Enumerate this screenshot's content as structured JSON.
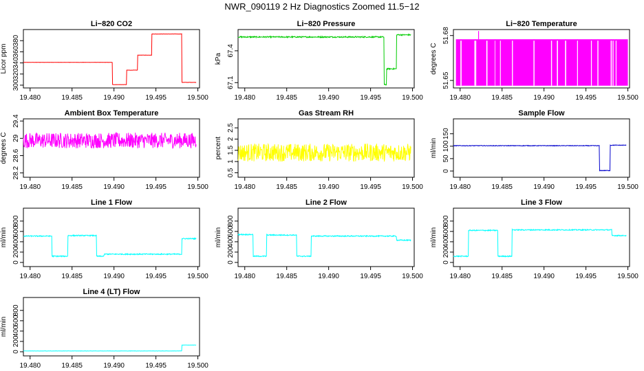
{
  "title": "NWR_090119  2 Hz Diagnostics Zoomed 11.5−12",
  "x_tick_labels": [
    "19.480",
    "19.485",
    "19.490",
    "19.495",
    "19.500"
  ],
  "chart_data": [
    {
      "type": "line",
      "title": "Li−820 CO2",
      "ylabel": "Licor ppm",
      "color": "#ff0000",
      "xlim": [
        19.4792,
        19.5002
      ],
      "ylim": [
        295,
        400
      ],
      "yticks": [
        300,
        320,
        340,
        360,
        380
      ],
      "noise": 0.2,
      "segments": [
        [
          19.4792,
          19.4898,
          341
        ],
        [
          19.4898,
          19.4915,
          301
        ],
        [
          19.4915,
          19.4928,
          327
        ],
        [
          19.4928,
          19.4945,
          354
        ],
        [
          19.4945,
          19.4981,
          392
        ],
        [
          19.4981,
          19.4998,
          305
        ]
      ]
    },
    {
      "type": "line",
      "title": "Li−820 Pressure",
      "ylabel": "kPa",
      "color": "#00cc00",
      "xlim": [
        19.4792,
        19.5002
      ],
      "ylim": [
        67.05,
        67.6
      ],
      "yticks": [
        67.1,
        67.4
      ],
      "noise": 0.006,
      "segments": [
        [
          19.4792,
          19.4966,
          67.53
        ],
        [
          19.4966,
          19.4969,
          67.08
        ],
        [
          19.4969,
          19.4981,
          67.23
        ],
        [
          19.4981,
          19.4998,
          67.55
        ]
      ]
    },
    {
      "type": "line",
      "title": "Li−820 Temperature",
      "ylabel": "degrees C",
      "color": "#ff00ff",
      "xlim": [
        19.4792,
        19.5002
      ],
      "ylim": [
        51.645,
        51.684
      ],
      "yticks": [
        51.65,
        51.68
      ],
      "style": "band",
      "band_low": 51.6465,
      "band_high": 51.6775,
      "spike": [
        19.4822,
        51.683
      ]
    },
    {
      "type": "line",
      "title": "Ambient Box Temperature",
      "ylabel": "degrees C",
      "color": "#ff00ff",
      "xlim": [
        19.4792,
        19.5002
      ],
      "ylim": [
        28.1,
        29.45
      ],
      "yticks": [
        28.2,
        28.6,
        29.0,
        29.4
      ],
      "noise": 0.18,
      "segments": [
        [
          19.4792,
          19.4998,
          28.95
        ]
      ]
    },
    {
      "type": "line",
      "title": "Gas Stream RH",
      "ylabel": "percent",
      "color": "#ffff00",
      "xlim": [
        19.4792,
        19.5002
      ],
      "ylim": [
        0.3,
        2.9
      ],
      "yticks": [
        0.5,
        1.0,
        1.5,
        2.0,
        2.5
      ],
      "noise": 0.4,
      "segments": [
        [
          19.4792,
          19.4998,
          1.4
        ]
      ]
    },
    {
      "type": "line",
      "title": "Sample Flow",
      "ylabel": "ml/min",
      "color": "#0000cc",
      "xlim": [
        19.4792,
        19.5002
      ],
      "ylim": [
        -25,
        210
      ],
      "yticks": [
        0,
        50,
        100,
        150
      ],
      "noise": 1.2,
      "segments": [
        [
          19.4792,
          19.4966,
          102
        ],
        [
          19.4966,
          19.4979,
          2
        ],
        [
          19.4979,
          19.4998,
          104
        ]
      ]
    },
    {
      "type": "line",
      "title": "Line 1 Flow",
      "ylabel": "ml/min",
      "color": "#00ffff",
      "xlim": [
        19.4792,
        19.5002
      ],
      "ylim": [
        -80,
        1050
      ],
      "yticks": [
        0,
        200,
        400,
        600,
        800
      ],
      "noise": 10,
      "segments": [
        [
          19.4792,
          19.4826,
          510
        ],
        [
          19.4826,
          19.4845,
          120
        ],
        [
          19.4845,
          19.4879,
          520
        ],
        [
          19.4879,
          19.4888,
          120
        ],
        [
          19.4888,
          19.4981,
          160
        ],
        [
          19.4981,
          19.4998,
          460
        ]
      ]
    },
    {
      "type": "line",
      "title": "Line 2 Flow",
      "ylabel": "ml/min",
      "color": "#00ffff",
      "xlim": [
        19.4792,
        19.5002
      ],
      "ylim": [
        -80,
        1050
      ],
      "yticks": [
        0,
        200,
        400,
        600,
        800
      ],
      "noise": 10,
      "segments": [
        [
          19.4792,
          19.481,
          540
        ],
        [
          19.481,
          19.4826,
          120
        ],
        [
          19.4826,
          19.4862,
          530
        ],
        [
          19.4862,
          19.4879,
          120
        ],
        [
          19.4879,
          19.4981,
          510
        ],
        [
          19.4981,
          19.4998,
          430
        ]
      ]
    },
    {
      "type": "line",
      "title": "Line 3 Flow",
      "ylabel": "ml/min",
      "color": "#00ffff",
      "xlim": [
        19.4792,
        19.5002
      ],
      "ylim": [
        -80,
        1050
      ],
      "yticks": [
        0,
        200,
        400,
        600,
        800
      ],
      "noise": 10,
      "segments": [
        [
          19.4792,
          19.481,
          120
        ],
        [
          19.481,
          19.4845,
          620
        ],
        [
          19.4845,
          19.4862,
          120
        ],
        [
          19.4862,
          19.4981,
          630
        ],
        [
          19.4981,
          19.4998,
          520
        ]
      ]
    },
    {
      "type": "line",
      "title": "Line 4 (LT) Flow",
      "ylabel": "ml/min",
      "color": "#00ffff",
      "xlim": [
        19.4792,
        19.5002
      ],
      "ylim": [
        -80,
        1050
      ],
      "yticks": [
        0,
        200,
        400,
        600,
        800
      ],
      "noise": 2,
      "segments": [
        [
          19.4792,
          19.4981,
          15
        ],
        [
          19.4981,
          19.4998,
          130
        ]
      ]
    }
  ]
}
